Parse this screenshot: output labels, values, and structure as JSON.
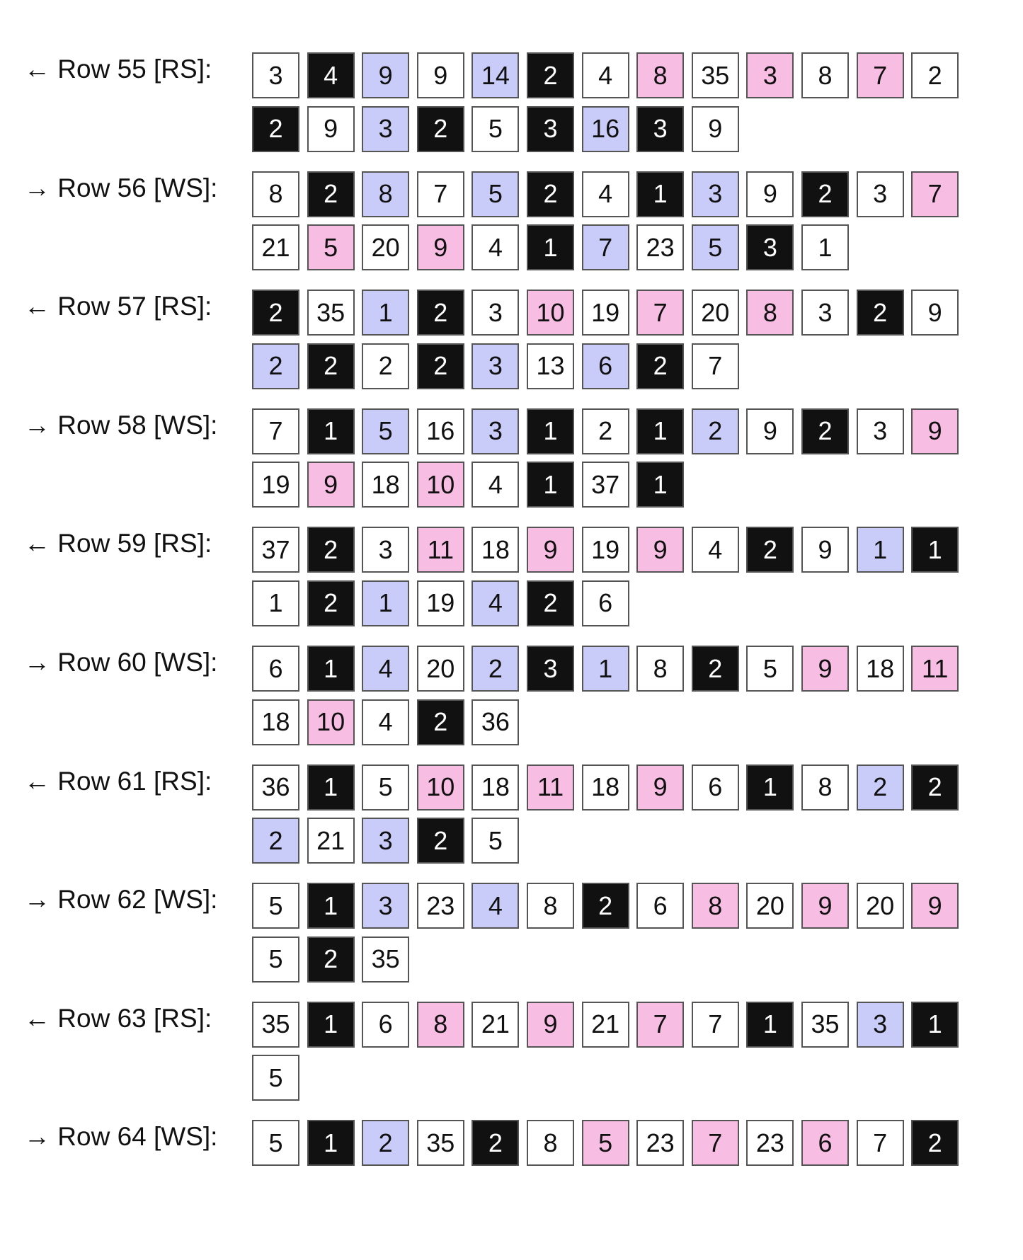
{
  "colors": {
    "w": "#ffffff",
    "k": "#111111",
    "b": "#c9ccf8",
    "p": "#f8bde2"
  },
  "rows": [
    {
      "label": "← Row 55 [RS]:",
      "lines": [
        [
          [
            "3",
            "w"
          ],
          [
            "4",
            "k"
          ],
          [
            "9",
            "b"
          ],
          [
            "9",
            "w"
          ],
          [
            "14",
            "b"
          ],
          [
            "2",
            "k"
          ],
          [
            "4",
            "w"
          ],
          [
            "8",
            "p"
          ],
          [
            "35",
            "w"
          ],
          [
            "3",
            "p"
          ],
          [
            "8",
            "w"
          ],
          [
            "7",
            "p"
          ],
          [
            "2",
            "w"
          ]
        ],
        [
          [
            "2",
            "k"
          ],
          [
            "9",
            "w"
          ],
          [
            "3",
            "b"
          ],
          [
            "2",
            "k"
          ],
          [
            "5",
            "w"
          ],
          [
            "3",
            "k"
          ],
          [
            "16",
            "b"
          ],
          [
            "3",
            "k"
          ],
          [
            "9",
            "w"
          ]
        ]
      ]
    },
    {
      "label": "→ Row 56 [WS]:",
      "lines": [
        [
          [
            "8",
            "w"
          ],
          [
            "2",
            "k"
          ],
          [
            "8",
            "b"
          ],
          [
            "7",
            "w"
          ],
          [
            "5",
            "b"
          ],
          [
            "2",
            "k"
          ],
          [
            "4",
            "w"
          ],
          [
            "1",
            "k"
          ],
          [
            "3",
            "b"
          ],
          [
            "9",
            "w"
          ],
          [
            "2",
            "k"
          ],
          [
            "3",
            "w"
          ],
          [
            "7",
            "p"
          ]
        ],
        [
          [
            "21",
            "w"
          ],
          [
            "5",
            "p"
          ],
          [
            "20",
            "w"
          ],
          [
            "9",
            "p"
          ],
          [
            "4",
            "w"
          ],
          [
            "1",
            "k"
          ],
          [
            "7",
            "b"
          ],
          [
            "23",
            "w"
          ],
          [
            "5",
            "b"
          ],
          [
            "3",
            "k"
          ],
          [
            "1",
            "w"
          ]
        ]
      ]
    },
    {
      "label": "← Row 57 [RS]:",
      "lines": [
        [
          [
            "2",
            "k"
          ],
          [
            "35",
            "w"
          ],
          [
            "1",
            "b"
          ],
          [
            "2",
            "k"
          ],
          [
            "3",
            "w"
          ],
          [
            "10",
            "p"
          ],
          [
            "19",
            "w"
          ],
          [
            "7",
            "p"
          ],
          [
            "20",
            "w"
          ],
          [
            "8",
            "p"
          ],
          [
            "3",
            "w"
          ],
          [
            "2",
            "k"
          ],
          [
            "9",
            "w"
          ]
        ],
        [
          [
            "2",
            "b"
          ],
          [
            "2",
            "k"
          ],
          [
            "2",
            "w"
          ],
          [
            "2",
            "k"
          ],
          [
            "3",
            "b"
          ],
          [
            "13",
            "w"
          ],
          [
            "6",
            "b"
          ],
          [
            "2",
            "k"
          ],
          [
            "7",
            "w"
          ]
        ]
      ]
    },
    {
      "label": "→ Row 58 [WS]:",
      "lines": [
        [
          [
            "7",
            "w"
          ],
          [
            "1",
            "k"
          ],
          [
            "5",
            "b"
          ],
          [
            "16",
            "w"
          ],
          [
            "3",
            "b"
          ],
          [
            "1",
            "k"
          ],
          [
            "2",
            "w"
          ],
          [
            "1",
            "k"
          ],
          [
            "2",
            "b"
          ],
          [
            "9",
            "w"
          ],
          [
            "2",
            "k"
          ],
          [
            "3",
            "w"
          ],
          [
            "9",
            "p"
          ]
        ],
        [
          [
            "19",
            "w"
          ],
          [
            "9",
            "p"
          ],
          [
            "18",
            "w"
          ],
          [
            "10",
            "p"
          ],
          [
            "4",
            "w"
          ],
          [
            "1",
            "k"
          ],
          [
            "37",
            "w"
          ],
          [
            "1",
            "k"
          ]
        ]
      ]
    },
    {
      "label": "← Row 59 [RS]:",
      "lines": [
        [
          [
            "37",
            "w"
          ],
          [
            "2",
            "k"
          ],
          [
            "3",
            "w"
          ],
          [
            "11",
            "p"
          ],
          [
            "18",
            "w"
          ],
          [
            "9",
            "p"
          ],
          [
            "19",
            "w"
          ],
          [
            "9",
            "p"
          ],
          [
            "4",
            "w"
          ],
          [
            "2",
            "k"
          ],
          [
            "9",
            "w"
          ],
          [
            "1",
            "b"
          ],
          [
            "1",
            "k"
          ]
        ],
        [
          [
            "1",
            "w"
          ],
          [
            "2",
            "k"
          ],
          [
            "1",
            "b"
          ],
          [
            "19",
            "w"
          ],
          [
            "4",
            "b"
          ],
          [
            "2",
            "k"
          ],
          [
            "6",
            "w"
          ]
        ]
      ]
    },
    {
      "label": "→ Row 60 [WS]:",
      "lines": [
        [
          [
            "6",
            "w"
          ],
          [
            "1",
            "k"
          ],
          [
            "4",
            "b"
          ],
          [
            "20",
            "w"
          ],
          [
            "2",
            "b"
          ],
          [
            "3",
            "k"
          ],
          [
            "1",
            "b"
          ],
          [
            "8",
            "w"
          ],
          [
            "2",
            "k"
          ],
          [
            "5",
            "w"
          ],
          [
            "9",
            "p"
          ],
          [
            "18",
            "w"
          ],
          [
            "11",
            "p"
          ]
        ],
        [
          [
            "18",
            "w"
          ],
          [
            "10",
            "p"
          ],
          [
            "4",
            "w"
          ],
          [
            "2",
            "k"
          ],
          [
            "36",
            "w"
          ]
        ]
      ]
    },
    {
      "label": "← Row 61 [RS]:",
      "lines": [
        [
          [
            "36",
            "w"
          ],
          [
            "1",
            "k"
          ],
          [
            "5",
            "w"
          ],
          [
            "10",
            "p"
          ],
          [
            "18",
            "w"
          ],
          [
            "11",
            "p"
          ],
          [
            "18",
            "w"
          ],
          [
            "9",
            "p"
          ],
          [
            "6",
            "w"
          ],
          [
            "1",
            "k"
          ],
          [
            "8",
            "w"
          ],
          [
            "2",
            "b"
          ],
          [
            "2",
            "k"
          ]
        ],
        [
          [
            "2",
            "b"
          ],
          [
            "21",
            "w"
          ],
          [
            "3",
            "b"
          ],
          [
            "2",
            "k"
          ],
          [
            "5",
            "w"
          ]
        ]
      ]
    },
    {
      "label": "→ Row 62 [WS]:",
      "lines": [
        [
          [
            "5",
            "w"
          ],
          [
            "1",
            "k"
          ],
          [
            "3",
            "b"
          ],
          [
            "23",
            "w"
          ],
          [
            "4",
            "b"
          ],
          [
            "8",
            "w"
          ],
          [
            "2",
            "k"
          ],
          [
            "6",
            "w"
          ],
          [
            "8",
            "p"
          ],
          [
            "20",
            "w"
          ],
          [
            "9",
            "p"
          ],
          [
            "20",
            "w"
          ],
          [
            "9",
            "p"
          ]
        ],
        [
          [
            "5",
            "w"
          ],
          [
            "2",
            "k"
          ],
          [
            "35",
            "w"
          ]
        ]
      ]
    },
    {
      "label": "← Row 63 [RS]:",
      "lines": [
        [
          [
            "35",
            "w"
          ],
          [
            "1",
            "k"
          ],
          [
            "6",
            "w"
          ],
          [
            "8",
            "p"
          ],
          [
            "21",
            "w"
          ],
          [
            "9",
            "p"
          ],
          [
            "21",
            "w"
          ],
          [
            "7",
            "p"
          ],
          [
            "7",
            "w"
          ],
          [
            "1",
            "k"
          ],
          [
            "35",
            "w"
          ],
          [
            "3",
            "b"
          ],
          [
            "1",
            "k"
          ]
        ],
        [
          [
            "5",
            "w"
          ]
        ]
      ]
    },
    {
      "label": "→ Row 64 [WS]:",
      "lines": [
        [
          [
            "5",
            "w"
          ],
          [
            "1",
            "k"
          ],
          [
            "2",
            "b"
          ],
          [
            "35",
            "w"
          ],
          [
            "2",
            "k"
          ],
          [
            "8",
            "w"
          ],
          [
            "5",
            "p"
          ],
          [
            "23",
            "w"
          ],
          [
            "7",
            "p"
          ],
          [
            "23",
            "w"
          ],
          [
            "6",
            "p"
          ],
          [
            "7",
            "w"
          ],
          [
            "2",
            "k"
          ]
        ]
      ]
    }
  ]
}
